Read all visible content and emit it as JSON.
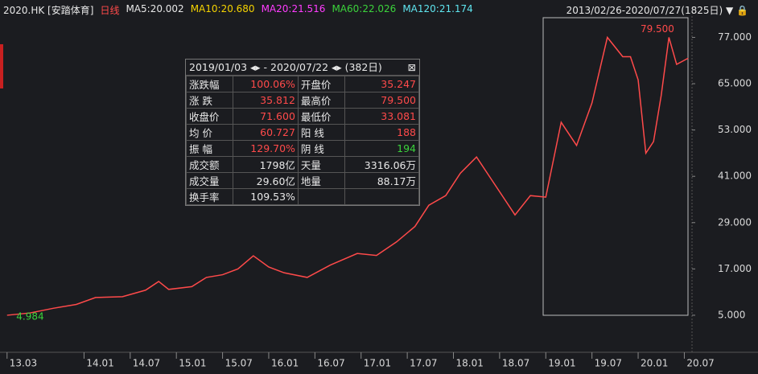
{
  "header": {
    "symbol": "2020.HK [安踏体育]",
    "period": "日线",
    "indicators": [
      {
        "label": "MA5:20.002",
        "color": "#e8e8e8"
      },
      {
        "label": "MA10:20.680",
        "color": "#f5d300"
      },
      {
        "label": "MA20:21.516",
        "color": "#ff3cff"
      },
      {
        "label": "MA60:22.026",
        "color": "#3bd33b"
      },
      {
        "label": "MA120:21.174",
        "color": "#5fe6f0"
      }
    ],
    "range": "2013/02/26-2020/07/27(1825日)"
  },
  "chart_data": {
    "type": "line",
    "x": [
      0,
      3,
      6,
      9,
      11.5,
      15,
      18,
      19.7,
      21,
      24,
      25.9,
      28,
      30,
      32,
      34,
      36,
      39,
      42,
      45.5,
      48,
      50.6,
      53,
      54.8,
      57,
      58.9,
      61,
      63,
      66,
      68,
      70,
      72,
      74,
      76,
      78,
      80,
      81,
      82,
      83,
      84,
      85,
      86,
      87,
      88.5
    ],
    "series": [
      {
        "color": "#ff4a4a",
        "values": [
          5.0,
          5.6,
          6.8,
          7.8,
          9.6,
          9.8,
          11.5,
          13.75,
          11.7,
          12.4,
          14.8,
          15.5,
          17.0,
          20.4,
          17.5,
          16.0,
          14.8,
          18.0,
          21.0,
          20.5,
          24.0,
          28.0,
          33.5,
          36.0,
          41.8,
          46.0,
          40.0,
          31.0,
          36.0,
          35.6,
          55.0,
          49.0,
          60.0,
          77.0,
          72.0,
          72.0,
          66.0,
          47.0,
          50.0,
          62.0,
          77.0,
          70.0,
          71.6
        ]
      }
    ],
    "xlim": [
      -0.5,
      89
    ],
    "ylim": [
      -4.6,
      82.1
    ],
    "xticks": [
      {
        "value": 0,
        "label": "13.03"
      },
      {
        "value": 10,
        "label": "14.01"
      },
      {
        "value": 16,
        "label": "14.07"
      },
      {
        "value": 22,
        "label": "15.01"
      },
      {
        "value": 28,
        "label": "15.07"
      },
      {
        "value": 34,
        "label": "16.01"
      },
      {
        "value": 40,
        "label": "16.07"
      },
      {
        "value": 46,
        "label": "17.01"
      },
      {
        "value": 52,
        "label": "17.07"
      },
      {
        "value": 58,
        "label": "18.01"
      },
      {
        "value": 64,
        "label": "18.07"
      },
      {
        "value": 70,
        "label": "19.01"
      },
      {
        "value": 76,
        "label": "19.07"
      },
      {
        "value": 82,
        "label": "20.01"
      },
      {
        "value": 88,
        "label": "20.07"
      }
    ],
    "yticks": [
      {
        "value": 5,
        "label": "5.000"
      },
      {
        "value": 17,
        "label": "17.000"
      },
      {
        "value": 29,
        "label": "29.000"
      },
      {
        "value": 41,
        "label": "41.000"
      },
      {
        "value": 53,
        "label": "53.000"
      },
      {
        "value": 65,
        "label": "65.000"
      },
      {
        "value": 77,
        "label": "77.000"
      }
    ],
    "annotations": [
      {
        "text": "79.500",
        "x": 84.5,
        "y": 79.5,
        "color": "#ff4a4a"
      },
      {
        "text": "4.984",
        "x": 3,
        "y": 4.984,
        "color": "#3bd33b"
      }
    ]
  },
  "panel": {
    "start": "2019/01/03",
    "end": "- 2020/07/22",
    "days": "(382日)",
    "rows": [
      [
        "涨跌幅",
        "100.06%",
        "开盘价",
        "35.247"
      ],
      [
        "涨 跌",
        "35.812",
        "最高价",
        "79.500"
      ],
      [
        "收盘价",
        "71.600",
        "最低价",
        "33.081"
      ],
      [
        "均 价",
        "60.727",
        "阳 线",
        "188"
      ],
      [
        "振 幅",
        "129.70%",
        "阴 线",
        "194"
      ],
      [
        "成交额",
        "1798亿",
        "天量",
        "3316.06万"
      ],
      [
        "成交量",
        "29.60亿",
        "地量",
        "88.17万"
      ],
      [
        "换手率",
        "109.53%"
      ]
    ]
  }
}
